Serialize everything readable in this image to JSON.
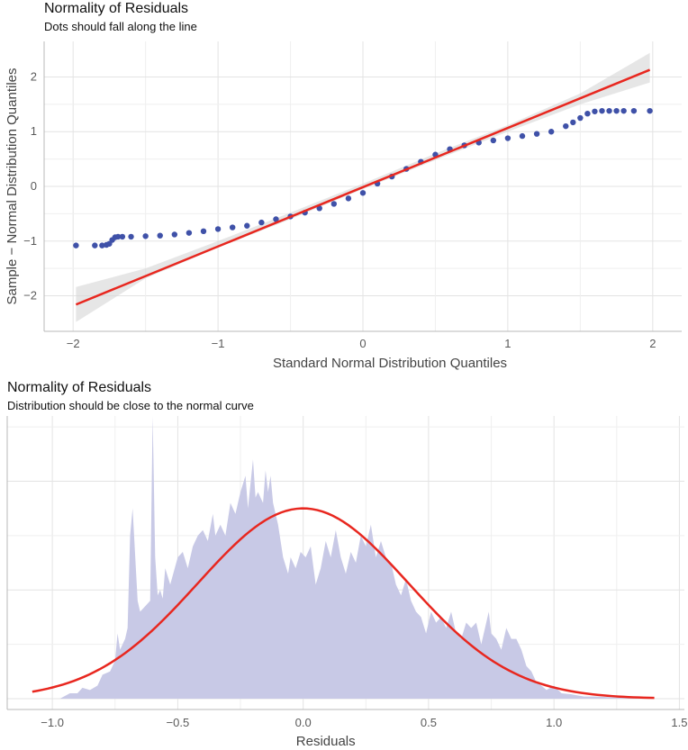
{
  "chart_data": [
    {
      "type": "scatter",
      "title": "Normality of Residuals",
      "subtitle": "Dots should fall along the line",
      "xlabel": "Standard Normal Distribution Quantiles",
      "ylabel": "Sample − Normal Distribution Quantiles",
      "xlim": [
        -2.2,
        2.2
      ],
      "ylim": [
        -2.65,
        2.65
      ],
      "xticks": [
        -2,
        -1,
        0,
        1,
        2
      ],
      "xtick_labels": [
        "−2",
        "−1",
        "0",
        "1",
        "2"
      ],
      "yticks": [
        -2,
        -1,
        0,
        1,
        2
      ],
      "ytick_labels": [
        "−2",
        "−1",
        "0",
        "1",
        "2"
      ],
      "grid": true,
      "colors": {
        "points": "#3f51a8",
        "line": "#e8271f",
        "band": "#d6d6d6"
      },
      "reference_line": {
        "x": [
          -1.98,
          1.98
        ],
        "y": [
          -2.16,
          2.13
        ]
      },
      "points": {
        "x": [
          -1.98,
          -1.85,
          -1.8,
          -1.77,
          -1.75,
          -1.73,
          -1.71,
          -1.69,
          -1.66,
          -1.6,
          -1.5,
          -1.4,
          -1.3,
          -1.2,
          -1.1,
          -1.0,
          -0.9,
          -0.8,
          -0.7,
          -0.6,
          -0.5,
          -0.4,
          -0.3,
          -0.2,
          -0.1,
          0.0,
          0.1,
          0.2,
          0.3,
          0.4,
          0.5,
          0.6,
          0.7,
          0.8,
          0.9,
          1.0,
          1.1,
          1.2,
          1.3,
          1.4,
          1.45,
          1.5,
          1.55,
          1.6,
          1.65,
          1.7,
          1.75,
          1.8,
          1.87,
          1.98
        ],
        "y": [
          -1.08,
          -1.08,
          -1.08,
          -1.07,
          -1.05,
          -0.98,
          -0.93,
          -0.92,
          -0.92,
          -0.92,
          -0.91,
          -0.9,
          -0.88,
          -0.85,
          -0.82,
          -0.78,
          -0.75,
          -0.72,
          -0.66,
          -0.6,
          -0.55,
          -0.48,
          -0.4,
          -0.32,
          -0.22,
          -0.12,
          0.05,
          0.18,
          0.32,
          0.45,
          0.58,
          0.68,
          0.75,
          0.8,
          0.84,
          0.88,
          0.92,
          0.96,
          1.0,
          1.1,
          1.17,
          1.25,
          1.33,
          1.37,
          1.38,
          1.38,
          1.38,
          1.38,
          1.38,
          1.38
        ]
      },
      "confidence_band": {
        "x": [
          -1.98,
          -1.5,
          -1.0,
          -0.5,
          0.0,
          0.5,
          1.0,
          1.5,
          1.98
        ],
        "lower": [
          -2.48,
          -1.68,
          -1.12,
          -0.6,
          -0.05,
          0.48,
          1.0,
          1.5,
          1.9
        ],
        "upper": [
          -1.84,
          -1.5,
          -1.0,
          -0.48,
          0.05,
          0.6,
          1.12,
          1.7,
          2.44
        ]
      }
    },
    {
      "type": "area",
      "title": "Normality of Residuals",
      "subtitle": "Distribution should be close to the normal curve",
      "xlabel": "Residuals",
      "ylabel": "",
      "xlim": [
        -1.18,
        1.52
      ],
      "ylim": [
        0,
        2.85
      ],
      "xticks": [
        -1.0,
        -0.5,
        0.0,
        0.5,
        1.0,
        1.5
      ],
      "xtick_labels": [
        "−1.0",
        "−0.5",
        "0.0",
        "0.5",
        "1.0",
        "1.5"
      ],
      "grid": true,
      "colors": {
        "density": "#c8c9e6",
        "curve": "#e8271f"
      },
      "density": {
        "x": [
          -0.97,
          -0.93,
          -0.9,
          -0.88,
          -0.85,
          -0.82,
          -0.8,
          -0.77,
          -0.75,
          -0.74,
          -0.73,
          -0.72,
          -0.71,
          -0.7,
          -0.69,
          -0.68,
          -0.66,
          -0.65,
          -0.63,
          -0.61,
          -0.6,
          -0.59,
          -0.58,
          -0.57,
          -0.56,
          -0.55,
          -0.53,
          -0.5,
          -0.48,
          -0.46,
          -0.44,
          -0.42,
          -0.4,
          -0.38,
          -0.36,
          -0.35,
          -0.33,
          -0.31,
          -0.29,
          -0.27,
          -0.25,
          -0.23,
          -0.22,
          -0.2,
          -0.19,
          -0.18,
          -0.17,
          -0.16,
          -0.15,
          -0.14,
          -0.13,
          -0.12,
          -0.1,
          -0.08,
          -0.06,
          -0.05,
          -0.03,
          -0.01,
          0.01,
          0.03,
          0.05,
          0.07,
          0.09,
          0.11,
          0.13,
          0.15,
          0.17,
          0.19,
          0.21,
          0.23,
          0.25,
          0.27,
          0.29,
          0.31,
          0.33,
          0.35,
          0.37,
          0.39,
          0.41,
          0.43,
          0.45,
          0.47,
          0.49,
          0.51,
          0.53,
          0.55,
          0.57,
          0.59,
          0.61,
          0.63,
          0.65,
          0.67,
          0.69,
          0.71,
          0.73,
          0.74,
          0.75,
          0.77,
          0.79,
          0.81,
          0.83,
          0.85,
          0.87,
          0.89,
          0.91,
          0.93,
          0.95,
          0.97,
          1.0,
          1.03,
          1.07,
          1.12,
          1.17,
          1.25,
          1.3,
          1.36
        ],
        "y": [
          0.0,
          0.05,
          0.05,
          0.1,
          0.08,
          0.12,
          0.22,
          0.25,
          0.35,
          0.6,
          0.45,
          0.5,
          0.55,
          0.65,
          1.5,
          1.75,
          0.9,
          0.8,
          0.85,
          0.9,
          2.6,
          1.3,
          0.95,
          1.0,
          0.92,
          1.2,
          1.05,
          1.3,
          1.35,
          1.2,
          1.4,
          1.5,
          1.55,
          1.45,
          1.7,
          1.5,
          1.6,
          1.5,
          1.8,
          1.7,
          1.9,
          2.05,
          1.75,
          2.2,
          1.85,
          1.9,
          1.85,
          1.8,
          2.1,
          1.9,
          2.05,
          1.8,
          1.6,
          1.3,
          1.15,
          1.3,
          1.2,
          1.35,
          1.3,
          1.4,
          1.05,
          1.2,
          1.45,
          1.3,
          1.55,
          1.3,
          1.15,
          1.35,
          1.25,
          1.5,
          1.4,
          1.6,
          1.3,
          1.45,
          1.3,
          1.25,
          1.05,
          0.95,
          1.1,
          0.9,
          0.8,
          0.75,
          0.6,
          0.8,
          0.7,
          0.75,
          0.65,
          0.8,
          0.6,
          0.55,
          0.7,
          0.65,
          0.7,
          0.5,
          0.7,
          0.8,
          0.6,
          0.55,
          0.45,
          0.65,
          0.55,
          0.55,
          0.45,
          0.3,
          0.25,
          0.15,
          0.12,
          0.08,
          0.12,
          0.05,
          0.04,
          0.02,
          0.02,
          0.01,
          0.01,
          0.0
        ]
      },
      "normal_curve": {
        "mean": 0.0,
        "sd": 0.42,
        "x_range": [
          -1.08,
          1.4
        ]
      }
    }
  ]
}
